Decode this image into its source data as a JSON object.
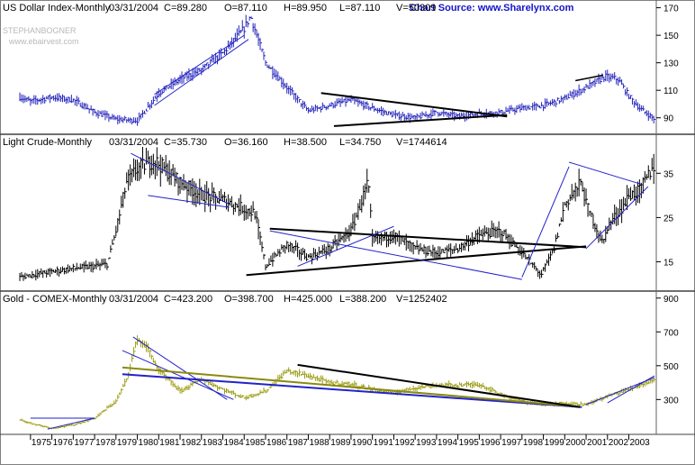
{
  "source": "Chart Source: www.Sharelynx.com",
  "watermark": [
    "STEPHANBOGNER",
    "www.ebairvest.com"
  ],
  "colors": {
    "usd_bars": "#2222bb",
    "crude_bars": "#000000",
    "gold_bars": "#9a9a10",
    "trend_blue": "#2222cc",
    "trend_black": "#000000",
    "trend_olive": "#8a8a10"
  },
  "chart_data": [
    {
      "type": "ohlc-bar",
      "panel": "usd",
      "header": [
        "US Dollar Index-Monthly",
        "03/31/2004",
        "C=89.280",
        "O=87.110",
        "H=89.950",
        "L=87.110",
        "V=50309"
      ],
      "yticks": [
        90,
        110,
        130,
        150,
        170
      ],
      "ylim": [
        80,
        173
      ],
      "x": [
        1985.3,
        1986,
        1987,
        1988,
        1989,
        1990,
        1991,
        1992,
        1993,
        1994,
        1995,
        1996,
        1997,
        1998,
        1999,
        2000,
        2001,
        2001.9,
        2002.5,
        2003,
        2003.5,
        2004.2
      ],
      "values": [
        164,
        130,
        112,
        95,
        99,
        103,
        97,
        92,
        90,
        94,
        91,
        93,
        94,
        97,
        99,
        104,
        112,
        120,
        118,
        106,
        97,
        89
      ],
      "series_prefix": [
        {
          "x": 1974.5,
          "y": 105
        },
        {
          "x": 1975,
          "y": 102
        },
        {
          "x": 1976,
          "y": 105
        },
        {
          "x": 1977,
          "y": 103
        },
        {
          "x": 1978,
          "y": 94
        },
        {
          "x": 1979,
          "y": 89
        },
        {
          "x": 1980,
          "y": 88
        },
        {
          "x": 1981,
          "y": 108
        },
        {
          "x": 1982,
          "y": 118
        },
        {
          "x": 1983,
          "y": 125
        },
        {
          "x": 1984,
          "y": 137
        },
        {
          "x": 1985,
          "y": 155
        }
      ]
    },
    {
      "type": "ohlc-bar",
      "panel": "crude",
      "header": [
        "Light Crude-Monthly",
        "03/31/2004",
        "C=35.730",
        "O=36.160",
        "H=38.500",
        "L=34.750",
        "V=1744614"
      ],
      "yticks": [
        15,
        25,
        35
      ],
      "ylim": [
        9,
        43
      ],
      "x": [
        1974.5,
        1975,
        1976,
        1977,
        1978,
        1978.6,
        1979,
        1979.5,
        1980,
        1980.8,
        1981.5,
        1982,
        1983,
        1984,
        1985,
        1985.5,
        1986,
        1987,
        1988,
        1989,
        1990,
        1990.8,
        1991,
        1992,
        1993,
        1994,
        1995,
        1996,
        1997,
        1998,
        1998.9,
        1999.5,
        2000,
        2000.8,
        2001,
        2001.8,
        2002,
        2002.8,
        2003,
        2003.5,
        2004.2
      ],
      "values": [
        11.5,
        12,
        12.8,
        13.5,
        14,
        14.5,
        22,
        33,
        36,
        38,
        35,
        33,
        30,
        29,
        27,
        26,
        14,
        19,
        16,
        18,
        22,
        33,
        20,
        21,
        18,
        17,
        18,
        21,
        22,
        17,
        12,
        18,
        28,
        33,
        28,
        19,
        23,
        28,
        30,
        31,
        37
      ]
    },
    {
      "type": "ohlc-bar",
      "panel": "gold",
      "header": [
        "Gold - COMEX-Monthly",
        "03/31/2004",
        "C=423.200",
        "O=398.700",
        "H=425.000",
        "L=388.200",
        "V=1252402"
      ],
      "yticks": [
        300,
        500,
        700,
        900
      ],
      "ylim": [
        110,
        920
      ],
      "x": [
        1974.5,
        1975,
        1976,
        1977,
        1978,
        1979,
        1979.5,
        1980,
        1980.5,
        1981,
        1982,
        1983,
        1984,
        1985,
        1986,
        1987,
        1988,
        1989,
        1990,
        1991,
        1992,
        1993,
        1994,
        1995,
        1996,
        1997,
        1998,
        1999,
        2000,
        2001,
        2002,
        2003,
        2004.2
      ],
      "values": [
        180,
        160,
        130,
        150,
        190,
        290,
        420,
        660,
        600,
        470,
        350,
        420,
        360,
        310,
        350,
        470,
        440,
        400,
        390,
        360,
        340,
        370,
        385,
        385,
        390,
        330,
        290,
        270,
        280,
        270,
        320,
        360,
        420
      ]
    }
  ],
  "years": [
    "1975",
    "1976",
    "1977",
    "1978",
    "1979",
    "1980",
    "1981",
    "1982",
    "1983",
    "1984",
    "1985",
    "1986",
    "1987",
    "1988",
    "1989",
    "1990",
    "1991",
    "1992",
    "1993",
    "1994",
    "1995",
    "1996",
    "1997",
    "1998",
    "1999",
    "2000",
    "2001",
    "2002",
    "2003"
  ]
}
